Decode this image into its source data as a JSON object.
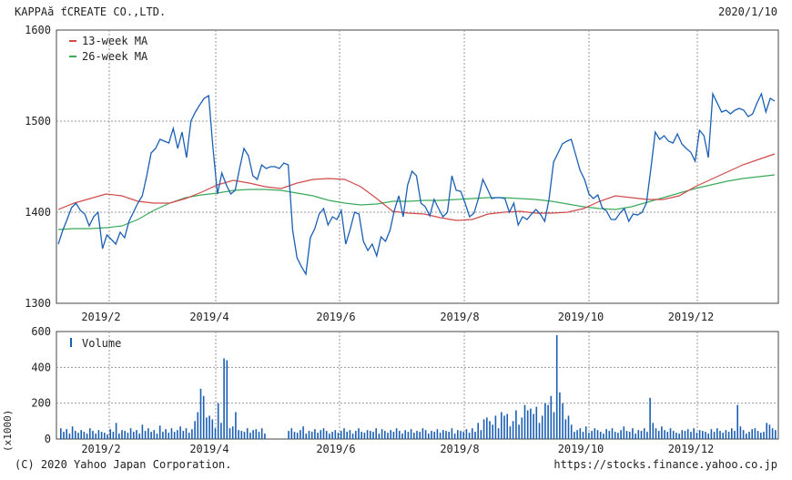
{
  "header": {
    "company": "KAPPAă ťCREATE CO.,LTD.",
    "date": "2020/1/10"
  },
  "footer": {
    "copyright": "(C) 2020 Yahoo Japan Corporation.",
    "url": "https://stocks.finance.yahoo.co.jp"
  },
  "chart_data": [
    {
      "type": "line",
      "title": "",
      "x_labels": [
        "2019/2",
        "2019/4",
        "2019/6",
        "2019/8",
        "2019/10",
        "2019/12"
      ],
      "ylim": [
        1300,
        1600
      ],
      "y_ticks": [
        "1600",
        "1500",
        "1400",
        "1300"
      ],
      "grid": true,
      "legend": "top-left",
      "series": [
        {
          "name": "price",
          "color": "#1a5fb4",
          "values": [
            1365,
            1380,
            1392,
            1405,
            1410,
            1402,
            1398,
            1385,
            1395,
            1400,
            1360,
            1375,
            1370,
            1365,
            1378,
            1372,
            1390,
            1400,
            1410,
            1418,
            1440,
            1465,
            1470,
            1480,
            1478,
            1476,
            1492,
            1470,
            1488,
            1460,
            1500,
            1510,
            1518,
            1525,
            1528,
            1470,
            1420,
            1443,
            1430,
            1420,
            1424,
            1448,
            1470,
            1462,
            1440,
            1436,
            1452,
            1448,
            1450,
            1450,
            1448,
            1454,
            1452,
            1380,
            1350,
            1340,
            1332,
            1372,
            1382,
            1398,
            1404,
            1386,
            1395,
            1392,
            1402,
            1365,
            1381,
            1400,
            1398,
            1368,
            1358,
            1365,
            1352,
            1373,
            1368,
            1380,
            1402,
            1418,
            1395,
            1430,
            1445,
            1440,
            1410,
            1406,
            1396,
            1414,
            1404,
            1395,
            1400,
            1440,
            1424,
            1423,
            1410,
            1395,
            1399,
            1415,
            1436,
            1426,
            1415,
            1416,
            1416,
            1415,
            1400,
            1410,
            1386,
            1395,
            1392,
            1398,
            1403,
            1398,
            1390,
            1415,
            1455,
            1465,
            1475,
            1478,
            1480,
            1463,
            1446,
            1436,
            1420,
            1415,
            1419,
            1405,
            1401,
            1392,
            1392,
            1399,
            1404,
            1390,
            1398,
            1397,
            1400,
            1410,
            1448,
            1488,
            1480,
            1484,
            1478,
            1476,
            1486,
            1475,
            1470,
            1466,
            1456,
            1490,
            1484,
            1460,
            1530,
            1520,
            1510,
            1512,
            1508,
            1512,
            1514,
            1512,
            1505,
            1508,
            1520,
            1530,
            1510,
            1525,
            1522
          ]
        },
        {
          "name": "13-week MA",
          "color": "#d24a4a",
          "values": [
            1403,
            1410,
            1415,
            1420,
            1418,
            1412,
            1410,
            1410,
            1415,
            1422,
            1430,
            1435,
            1432,
            1428,
            1426,
            1432,
            1436,
            1437,
            1436,
            1428,
            1415,
            1401,
            1399,
            1398,
            1394,
            1391,
            1392,
            1398,
            1400,
            1401,
            1399,
            1399,
            1400,
            1404,
            1412,
            1418,
            1416,
            1414,
            1414,
            1418,
            1428,
            1436,
            1444,
            1452,
            1458,
            1464
          ]
        },
        {
          "name": "26-week MA",
          "color": "#3aaa5a",
          "values": [
            1381,
            1382,
            1382,
            1383,
            1385,
            1392,
            1402,
            1410,
            1416,
            1419,
            1421,
            1424,
            1425,
            1425,
            1424,
            1421,
            1418,
            1413,
            1410,
            1408,
            1409,
            1412,
            1412,
            1413,
            1413,
            1414,
            1415,
            1416,
            1416,
            1415,
            1414,
            1412,
            1409,
            1406,
            1404,
            1403,
            1406,
            1411,
            1416,
            1421,
            1426,
            1430,
            1434,
            1437,
            1439,
            1441
          ]
        }
      ]
    },
    {
      "type": "bar",
      "title": "",
      "x_labels": [
        "2019/2",
        "2019/4",
        "2019/6",
        "2019/8",
        "2019/10",
        "2019/12"
      ],
      "ylim": [
        0,
        600
      ],
      "y_ticks": [
        "600",
        "400",
        "200",
        "0"
      ],
      "ylabel": "(x1000)",
      "legend": "top-left",
      "series": [
        {
          "name": "Volume",
          "color": "#1a5fb4",
          "values": [
            60,
            40,
            55,
            30,
            70,
            45,
            35,
            50,
            40,
            30,
            60,
            45,
            30,
            50,
            40,
            35,
            25,
            55,
            40,
            90,
            30,
            50,
            45,
            35,
            60,
            40,
            50,
            30,
            80,
            45,
            60,
            40,
            50,
            30,
            75,
            40,
            55,
            35,
            60,
            40,
            50,
            70,
            45,
            60,
            35,
            55,
            100,
            150,
            280,
            240,
            120,
            130,
            110,
            60,
            200,
            90,
            450,
            440,
            60,
            70,
            150,
            50,
            45,
            40,
            60,
            35,
            50,
            55,
            40,
            60,
            30,
            45,
            60,
            40,
            35,
            50,
            70,
            30,
            45,
            40,
            55,
            35,
            50,
            60,
            45,
            30,
            40,
            50,
            35,
            45,
            60,
            40,
            50,
            30,
            45,
            60,
            40,
            35,
            50,
            45,
            40,
            60,
            30,
            55,
            45,
            35,
            50,
            40,
            60,
            45,
            30,
            50,
            40,
            55,
            35,
            45,
            40,
            60,
            50,
            30,
            45,
            40,
            55,
            35,
            50,
            45,
            40,
            60,
            30,
            50,
            45,
            40,
            55,
            35,
            60,
            40,
            90,
            50,
            110,
            120,
            100,
            80,
            130,
            60,
            150,
            130,
            140,
            70,
            100,
            160,
            80,
            120,
            190,
            160,
            170,
            140,
            180,
            90,
            130,
            200,
            190,
            240,
            150,
            580,
            260,
            200,
            110,
            130,
            80,
            40,
            50,
            60,
            40,
            70,
            35,
            45,
            60,
            50,
            40,
            30,
            55,
            45,
            60,
            40,
            35,
            50,
            70,
            45,
            40,
            60,
            30,
            50,
            45,
            60,
            40,
            230,
            90,
            60,
            45,
            70,
            50,
            40,
            60,
            45,
            35,
            30,
            50,
            45,
            55,
            40,
            60,
            35,
            50,
            45,
            40,
            30,
            55,
            40,
            60,
            45,
            35,
            50,
            40,
            60,
            45,
            190,
            70,
            50,
            30,
            40,
            55,
            60,
            45,
            35,
            40,
            90,
            80,
            60,
            50
          ]
        }
      ]
    }
  ]
}
